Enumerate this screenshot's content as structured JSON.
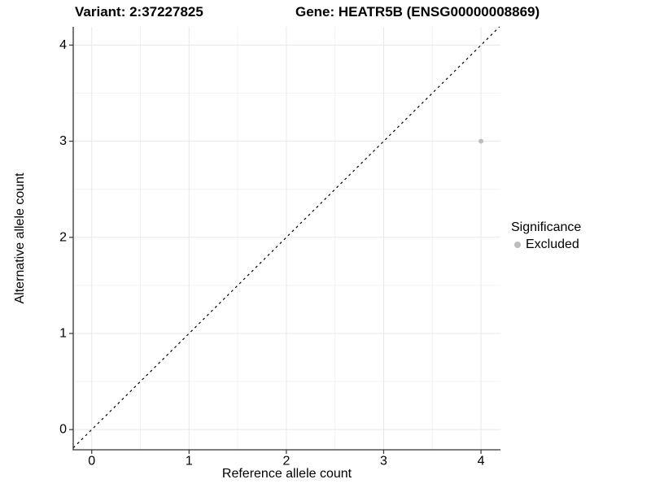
{
  "chart_data": {
    "type": "scatter",
    "title_left": "Variant: 2:37227825",
    "title_right": "Gene: HEATR5B (ENSG00000008869)",
    "xlabel": "Reference allele count",
    "ylabel": "Alternative allele count",
    "xlim": [
      -0.19,
      4.2
    ],
    "ylim": [
      -0.21,
      4.19
    ],
    "xticks": [
      0,
      1,
      2,
      3,
      4
    ],
    "yticks": [
      0,
      1,
      2,
      3,
      4
    ],
    "minor_gridlines_x": [
      0.5,
      1.5,
      2.5,
      3.5
    ],
    "minor_gridlines_y": [
      0.5,
      1.5,
      2.5,
      3.5
    ],
    "grid": "major+minor",
    "identity_line": {
      "style": "dashed",
      "equation": "y = x"
    },
    "series": [
      {
        "name": "Excluded",
        "color": "#bdbdbd",
        "points": [
          {
            "x": 4,
            "y": 3
          }
        ]
      }
    ],
    "legend": {
      "title": "Significance",
      "position": "right",
      "items": [
        {
          "label": "Excluded",
          "color": "#bdbdbd"
        }
      ]
    }
  },
  "colors": {
    "background": "#ffffff",
    "axis_line": "#333333",
    "grid_major": "#e8e8e8",
    "grid_minor": "#f2f2f2",
    "dashed_line": "#000000",
    "point": "#bdbdbd",
    "text": "#000000"
  }
}
